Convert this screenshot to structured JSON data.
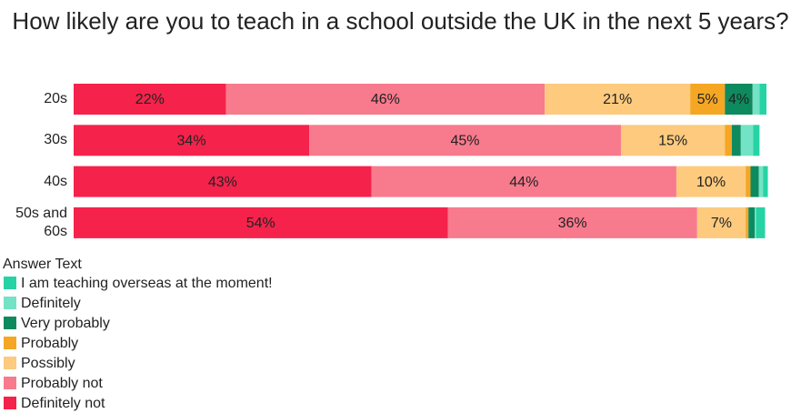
{
  "chart_data": {
    "type": "stacked-bar-horizontal",
    "title": "How likely are you to teach in a school outside the UK in the next 5 years?",
    "categories": [
      "20s",
      "30s",
      "40s",
      "50s and 60s"
    ],
    "xlim": [
      0,
      100
    ],
    "legend_title": "Answer Text",
    "series": [
      {
        "name": "Definitely not",
        "color": "#f5224b",
        "values": [
          22,
          34,
          43,
          54
        ],
        "value_labels": [
          "22%",
          "34%",
          "43%",
          "54%"
        ]
      },
      {
        "name": "Probably not",
        "color": "#f87a8d",
        "values": [
          46,
          45,
          44,
          36
        ],
        "value_labels": [
          "46%",
          "45%",
          "44%",
          "36%"
        ]
      },
      {
        "name": "Possibly",
        "color": "#fdca7e",
        "values": [
          21,
          15,
          10,
          7
        ],
        "value_labels": [
          "21%",
          "15%",
          "10%",
          "7%"
        ]
      },
      {
        "name": "Probably",
        "color": "#f5a623",
        "values": [
          5,
          1,
          0.7,
          0.4
        ],
        "value_labels": [
          "5%",
          null,
          null,
          null
        ]
      },
      {
        "name": "Very probably",
        "color": "#0e8a5f",
        "values": [
          4,
          1.3,
          1.2,
          0.9
        ],
        "value_labels": [
          "4%",
          null,
          null,
          null
        ]
      },
      {
        "name": "Definitely",
        "color": "#72e3c4",
        "values": [
          1,
          1.8,
          0.6,
          0.2
        ],
        "value_labels": [
          null,
          null,
          null,
          null
        ]
      },
      {
        "name": "I am teaching overseas at the moment!",
        "color": "#26d3a4",
        "values": [
          1,
          0.9,
          0.7,
          1.3
        ],
        "value_labels": [
          null,
          null,
          null,
          null
        ]
      }
    ]
  }
}
